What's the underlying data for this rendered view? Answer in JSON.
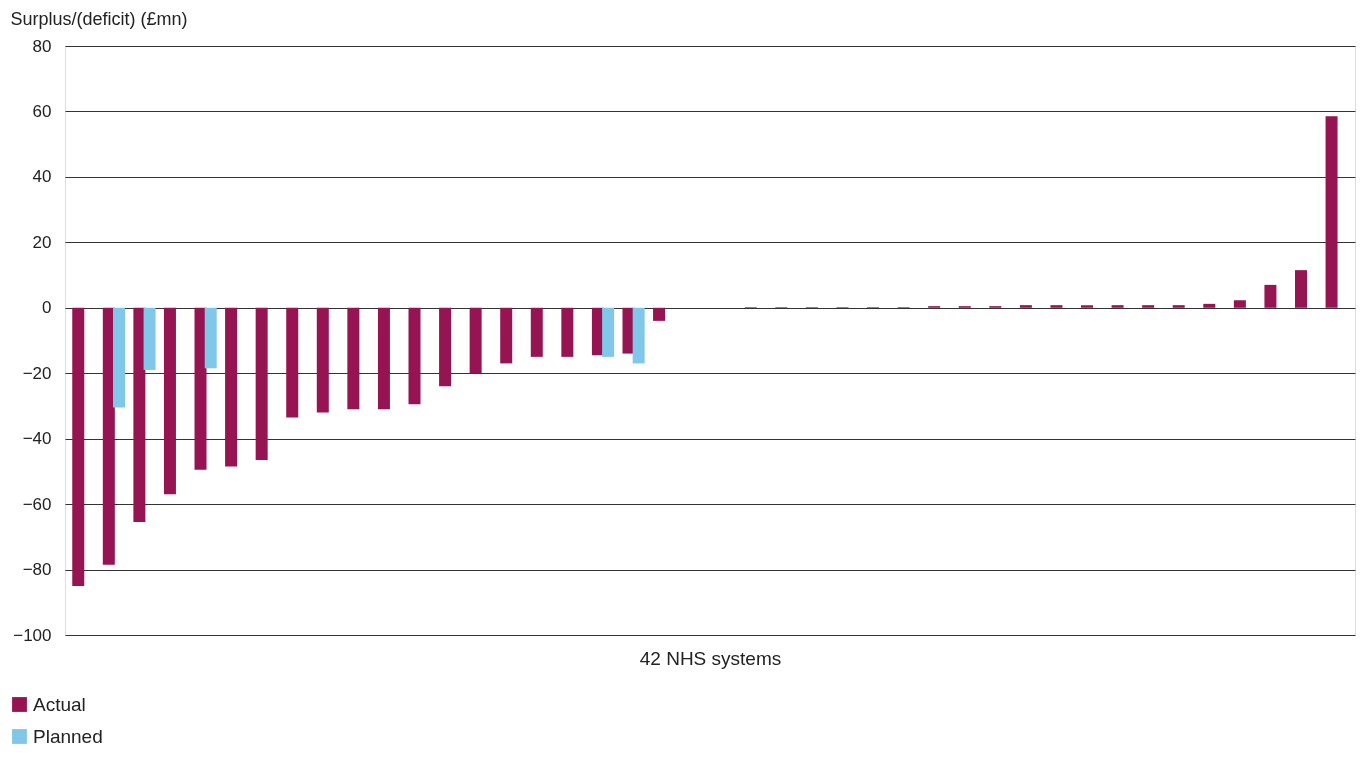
{
  "chart_data": {
    "type": "bar",
    "ylabel": "Surplus/(deficit) (£mn)",
    "xlabel": "42 NHS systems",
    "categories": [
      null,
      null,
      null,
      null,
      null,
      null,
      null,
      null,
      null,
      null,
      null,
      null,
      null,
      null,
      null,
      null,
      null,
      null,
      null,
      null,
      null,
      null,
      null,
      null,
      null,
      null,
      null,
      null,
      null,
      null,
      null,
      null,
      null,
      null,
      null,
      null,
      null,
      null,
      null,
      null,
      null,
      null
    ],
    "series": [
      {
        "name": "Actual",
        "color": "#961452",
        "values": [
          -85,
          -78.5,
          -65.5,
          -57,
          -49.5,
          -48.5,
          -46.5,
          -33.5,
          -32,
          -31,
          -31,
          -29.5,
          -24,
          -20,
          -17,
          -15,
          -15,
          -14.5,
          -14,
          -4,
          0,
          0,
          0.2,
          0.2,
          0.2,
          0.2,
          0.2,
          0.2,
          0.5,
          0.5,
          0.5,
          0.8,
          0.8,
          0.8,
          0.8,
          0.8,
          0.8,
          1.2,
          2.3,
          7,
          11.5,
          58.5
        ]
      },
      {
        "name": "Planned",
        "color": "#80c7ea",
        "values": [
          null,
          -30.5,
          -19,
          null,
          -18.5,
          null,
          null,
          null,
          null,
          null,
          null,
          null,
          null,
          null,
          null,
          null,
          null,
          -15,
          -17,
          null,
          null,
          null,
          null,
          null,
          null,
          null,
          null,
          null,
          null,
          null,
          null,
          null,
          null,
          null,
          null,
          null,
          null,
          null,
          null,
          null,
          null,
          null
        ]
      }
    ],
    "ylim": [
      -100,
      80
    ],
    "yticks": [
      -100,
      -80,
      -60,
      -40,
      -20,
      0,
      20,
      40,
      60,
      80
    ],
    "grid": "y",
    "legend": "bottom left",
    "tick_labels": "y"
  }
}
